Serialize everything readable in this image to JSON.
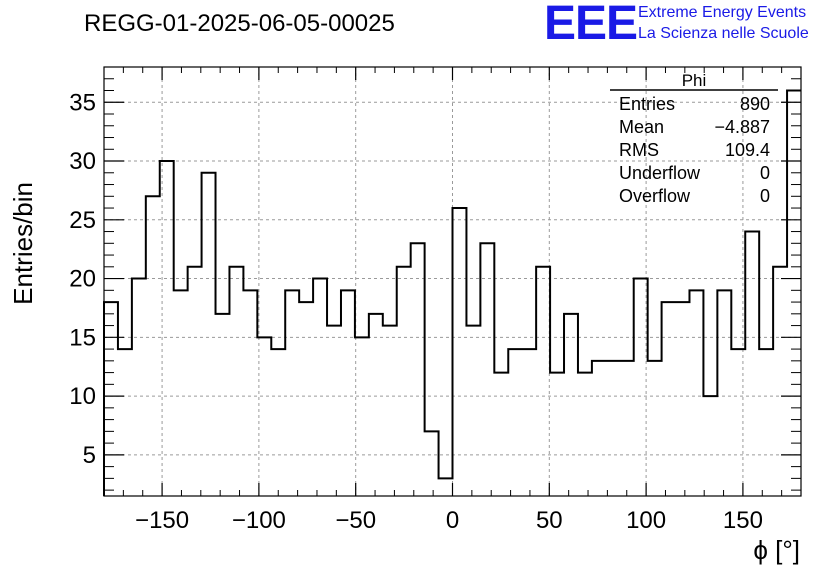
{
  "title": "REGG-01-2025-06-05-00025",
  "logo": {
    "mark": "EEE",
    "line1": "Extreme Energy Events",
    "line2": "La Scienza nelle Scuole",
    "color": "#1a1ae6"
  },
  "stats": {
    "name": "Phi",
    "rows": [
      {
        "label": "Entries",
        "value": "890"
      },
      {
        "label": "Mean",
        "value": "−4.887"
      },
      {
        "label": "RMS",
        "value": "109.4"
      },
      {
        "label": "Underflow",
        "value": "0"
      },
      {
        "label": "Overflow",
        "value": "0"
      }
    ]
  },
  "chart_data": {
    "type": "bar",
    "style": "step-histogram",
    "xlabel": "ϕ [°]",
    "ylabel": "Entries/bin",
    "xlim": [
      -180,
      180
    ],
    "ylim": [
      1.5,
      38
    ],
    "bin_width": 7.2,
    "bin_edges_start": -180,
    "values": [
      18,
      14,
      20,
      27,
      30,
      19,
      21,
      29,
      17,
      21,
      19,
      15,
      14,
      19,
      18,
      20,
      16,
      19,
      15,
      17,
      16,
      21,
      23,
      7,
      3,
      26,
      16,
      23,
      12,
      14,
      14,
      21,
      12,
      17,
      12,
      13,
      13,
      13,
      20,
      13,
      18,
      18,
      19,
      10,
      19,
      14,
      24,
      14,
      21,
      36
    ],
    "x_ticks": [
      -150,
      -100,
      -50,
      0,
      50,
      100,
      150
    ],
    "x_tick_labels": [
      "−150",
      "−100",
      "−50",
      "0",
      "50",
      "100",
      "150"
    ],
    "y_ticks": [
      5,
      10,
      15,
      20,
      25,
      30,
      35
    ],
    "y_tick_labels": [
      "5",
      "10",
      "15",
      "20",
      "25",
      "30",
      "35"
    ],
    "grid": true,
    "line_color": "#000000"
  }
}
